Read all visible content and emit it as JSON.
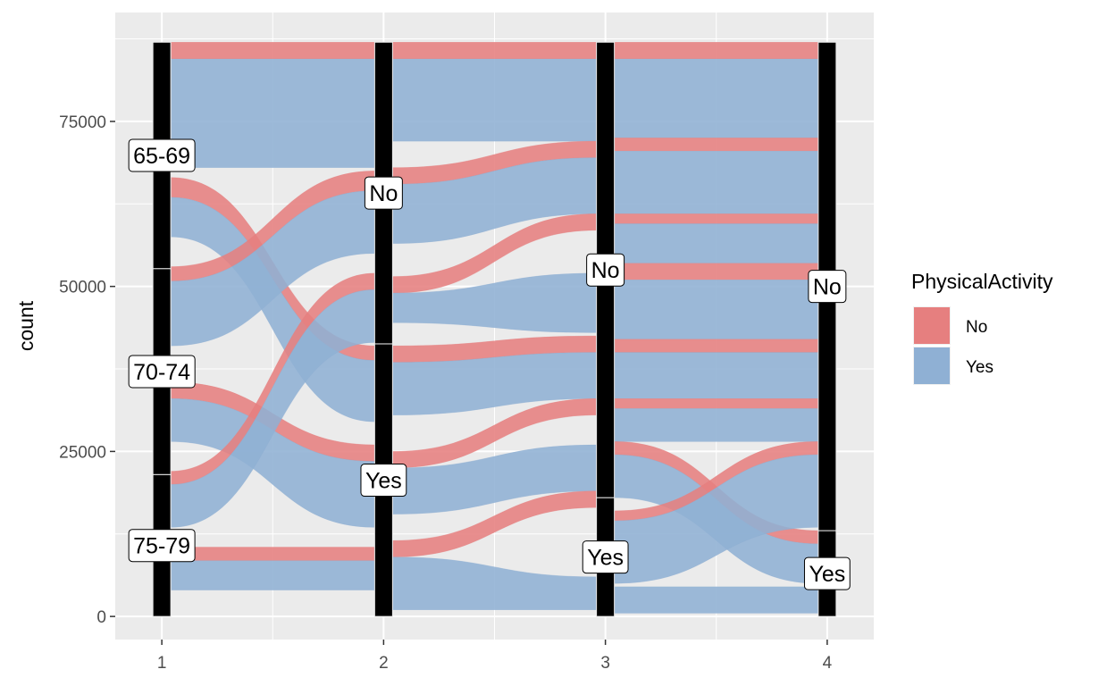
{
  "chart_data": {
    "type": "alluvial",
    "title": "",
    "xlabel": "",
    "ylabel": "count",
    "x_ticks": [
      "1",
      "2",
      "3",
      "4"
    ],
    "y_ticks": [
      "0",
      "25000",
      "50000",
      "75000"
    ],
    "y_tick_values": [
      0,
      25000,
      50000,
      75000
    ],
    "ylim": [
      -3500,
      91500
    ],
    "xlim": [
      0.79,
      4.21
    ],
    "total": 87000,
    "grid": true,
    "legend": {
      "title": "PhysicalActivity",
      "position": "right",
      "entries": [
        {
          "label": "No",
          "color": "#e67f7f"
        },
        {
          "label": "Yes",
          "color": "#8fb0d4"
        }
      ]
    },
    "colors": {
      "No": "#e67f7f",
      "Yes": "#8fb0d4",
      "panel": "#ebebeb",
      "grid": "#ffffff"
    },
    "axes": [
      {
        "x": 1,
        "strata": [
          {
            "label": "75-79",
            "bottom": 0,
            "top": 21500
          },
          {
            "label": "70-74",
            "bottom": 21500,
            "top": 52700
          },
          {
            "label": "65-69",
            "bottom": 52700,
            "top": 87000
          }
        ]
      },
      {
        "x": 2,
        "strata": [
          {
            "label": "Yes",
            "bottom": 0,
            "top": 41300
          },
          {
            "label": "No",
            "bottom": 41300,
            "top": 87000
          }
        ]
      },
      {
        "x": 3,
        "strata": [
          {
            "label": "Yes",
            "bottom": 0,
            "top": 18000
          },
          {
            "label": "No",
            "bottom": 18000,
            "top": 87000
          }
        ]
      },
      {
        "x": 4,
        "strata": [
          {
            "label": "Yes",
            "bottom": 0,
            "top": 13000
          },
          {
            "label": "No",
            "bottom": 13000,
            "top": 87000
          }
        ]
      }
    ],
    "flows": [
      {
        "from_x": 1,
        "to_x": 2,
        "fill": "Yes",
        "y0": [
          68000,
          84500
        ],
        "y1": [
          68000,
          84500
        ]
      },
      {
        "from_x": 1,
        "to_x": 2,
        "fill": "No",
        "y0": [
          84500,
          87000
        ],
        "y1": [
          84500,
          87000
        ]
      },
      {
        "from_x": 1,
        "to_x": 2,
        "fill": "No",
        "y0": [
          63500,
          66500
        ],
        "y1": [
          38800,
          41000
        ]
      },
      {
        "from_x": 1,
        "to_x": 2,
        "fill": "Yes",
        "y0": [
          57500,
          63500
        ],
        "y1": [
          29500,
          38800
        ]
      },
      {
        "from_x": 1,
        "to_x": 2,
        "fill": "No",
        "y0": [
          50800,
          53000
        ],
        "y1": [
          64500,
          67500
        ]
      },
      {
        "from_x": 1,
        "to_x": 2,
        "fill": "Yes",
        "y0": [
          41000,
          50800
        ],
        "y1": [
          55000,
          64500
        ]
      },
      {
        "from_x": 1,
        "to_x": 2,
        "fill": "No",
        "y0": [
          33000,
          35500
        ],
        "y1": [
          23500,
          26000
        ]
      },
      {
        "from_x": 1,
        "to_x": 2,
        "fill": "Yes",
        "y0": [
          26500,
          33000
        ],
        "y1": [
          13500,
          23500
        ]
      },
      {
        "from_x": 1,
        "to_x": 2,
        "fill": "No",
        "y0": [
          20000,
          22000
        ],
        "y1": [
          49500,
          52000
        ]
      },
      {
        "from_x": 1,
        "to_x": 2,
        "fill": "Yes",
        "y0": [
          13500,
          20000
        ],
        "y1": [
          41500,
          49500
        ]
      },
      {
        "from_x": 1,
        "to_x": 2,
        "fill": "Yes",
        "y0": [
          4000,
          8500
        ],
        "y1": [
          4000,
          8500
        ]
      },
      {
        "from_x": 1,
        "to_x": 2,
        "fill": "No",
        "y0": [
          8500,
          10500
        ],
        "y1": [
          8500,
          10500
        ]
      },
      {
        "from_x": 2,
        "to_x": 3,
        "fill": "Yes",
        "y0": [
          72000,
          84500
        ],
        "y1": [
          72000,
          84500
        ]
      },
      {
        "from_x": 2,
        "to_x": 3,
        "fill": "No",
        "y0": [
          84500,
          87000
        ],
        "y1": [
          84500,
          87000
        ]
      },
      {
        "from_x": 2,
        "to_x": 3,
        "fill": "No",
        "y0": [
          65500,
          68000
        ],
        "y1": [
          69500,
          72000
        ]
      },
      {
        "from_x": 2,
        "to_x": 3,
        "fill": "Yes",
        "y0": [
          56500,
          65500
        ],
        "y1": [
          61000,
          69500
        ]
      },
      {
        "from_x": 2,
        "to_x": 3,
        "fill": "No",
        "y0": [
          49000,
          51500
        ],
        "y1": [
          58500,
          61000
        ]
      },
      {
        "from_x": 2,
        "to_x": 3,
        "fill": "Yes",
        "y0": [
          44500,
          49000
        ],
        "y1": [
          43000,
          52000
        ]
      },
      {
        "from_x": 2,
        "to_x": 3,
        "fill": "No",
        "y0": [
          38500,
          41000
        ],
        "y1": [
          40000,
          42500
        ]
      },
      {
        "from_x": 2,
        "to_x": 3,
        "fill": "Yes",
        "y0": [
          30500,
          38500
        ],
        "y1": [
          33000,
          40000
        ]
      },
      {
        "from_x": 2,
        "to_x": 3,
        "fill": "No",
        "y0": [
          22500,
          25000
        ],
        "y1": [
          30500,
          33000
        ]
      },
      {
        "from_x": 2,
        "to_x": 3,
        "fill": "Yes",
        "y0": [
          15500,
          22500
        ],
        "y1": [
          19000,
          26000
        ]
      },
      {
        "from_x": 2,
        "to_x": 3,
        "fill": "No",
        "y0": [
          9000,
          11500
        ],
        "y1": [
          16500,
          19000
        ]
      },
      {
        "from_x": 2,
        "to_x": 3,
        "fill": "Yes",
        "y0": [
          1000,
          9000
        ],
        "y1": [
          1000,
          6000
        ]
      },
      {
        "from_x": 3,
        "to_x": 4,
        "fill": "Yes",
        "y0": [
          72500,
          84500
        ],
        "y1": [
          72500,
          84500
        ]
      },
      {
        "from_x": 3,
        "to_x": 4,
        "fill": "No",
        "y0": [
          84500,
          87000
        ],
        "y1": [
          84500,
          87000
        ]
      },
      {
        "from_x": 3,
        "to_x": 4,
        "fill": "No",
        "y0": [
          70500,
          72500
        ],
        "y1": [
          70500,
          72500
        ]
      },
      {
        "from_x": 3,
        "to_x": 4,
        "fill": "Yes",
        "y0": [
          61000,
          70500
        ],
        "y1": [
          61000,
          70500
        ]
      },
      {
        "from_x": 3,
        "to_x": 4,
        "fill": "No",
        "y0": [
          59500,
          61000
        ],
        "y1": [
          59500,
          61000
        ]
      },
      {
        "from_x": 3,
        "to_x": 4,
        "fill": "Yes",
        "y0": [
          53500,
          59500
        ],
        "y1": [
          53500,
          59500
        ]
      },
      {
        "from_x": 3,
        "to_x": 4,
        "fill": "No",
        "y0": [
          51000,
          53500
        ],
        "y1": [
          51000,
          53500
        ]
      },
      {
        "from_x": 3,
        "to_x": 4,
        "fill": "Yes",
        "y0": [
          42000,
          51000
        ],
        "y1": [
          42000,
          51000
        ]
      },
      {
        "from_x": 3,
        "to_x": 4,
        "fill": "No",
        "y0": [
          40000,
          42000
        ],
        "y1": [
          40000,
          42000
        ]
      },
      {
        "from_x": 3,
        "to_x": 4,
        "fill": "Yes",
        "y0": [
          33000,
          40000
        ],
        "y1": [
          33000,
          40000
        ]
      },
      {
        "from_x": 3,
        "to_x": 4,
        "fill": "No",
        "y0": [
          31500,
          33000
        ],
        "y1": [
          31500,
          33000
        ]
      },
      {
        "from_x": 3,
        "to_x": 4,
        "fill": "Yes",
        "y0": [
          26500,
          31500
        ],
        "y1": [
          26500,
          31500
        ]
      },
      {
        "from_x": 3,
        "to_x": 4,
        "fill": "No",
        "y0": [
          24500,
          26500
        ],
        "y1": [
          11000,
          13000
        ]
      },
      {
        "from_x": 3,
        "to_x": 4,
        "fill": "Yes",
        "y0": [
          18000,
          24500
        ],
        "y1": [
          5000,
          11000
        ]
      },
      {
        "from_x": 3,
        "to_x": 4,
        "fill": "No",
        "y0": [
          14500,
          16000
        ],
        "y1": [
          24500,
          26500
        ]
      },
      {
        "from_x": 3,
        "to_x": 4,
        "fill": "Yes",
        "y0": [
          5000,
          14500
        ],
        "y1": [
          13500,
          24500
        ]
      },
      {
        "from_x": 3,
        "to_x": 4,
        "fill": "Yes",
        "y0": [
          500,
          4500
        ],
        "y1": [
          500,
          4500
        ]
      }
    ]
  }
}
